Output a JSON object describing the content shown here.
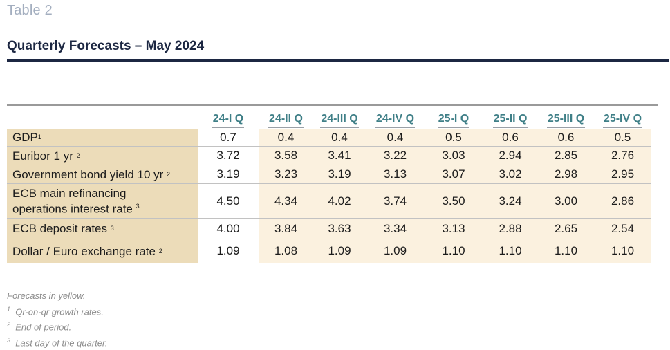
{
  "table_number": "Table 2",
  "title": "Quarterly Forecasts – May 2024",
  "columns": [
    "24-I Q",
    "24-II Q",
    "24-III Q",
    "24-IV Q",
    "25-I Q",
    "25-II Q",
    "25-III Q",
    "25-IV Q"
  ],
  "rows": [
    {
      "label": "GDP",
      "sup": "1",
      "values": [
        "0.7",
        "0.4",
        "0.4",
        "0.4",
        "0.5",
        "0.6",
        "0.6",
        "0.5"
      ]
    },
    {
      "label": "Euribor 1 yr",
      "sup": "2",
      "values": [
        "3.72",
        "3.58",
        "3.41",
        "3.22",
        "3.03",
        "2.94",
        "2.85",
        "2.76"
      ]
    },
    {
      "label": "Government bond yield 10 yr",
      "sup": "2",
      "values": [
        "3.19",
        "3.23",
        "3.19",
        "3.13",
        "3.07",
        "3.02",
        "2.98",
        "2.95"
      ]
    },
    {
      "label": "ECB main refinancing operations interest rate",
      "sup": "3",
      "values": [
        "4.50",
        "4.34",
        "4.02",
        "3.74",
        "3.50",
        "3.24",
        "3.00",
        "2.86"
      ]
    },
    {
      "label": "ECB deposit rates",
      "sup": "3",
      "values": [
        "4.00",
        "3.84",
        "3.63",
        "3.34",
        "3.13",
        "2.88",
        "2.65",
        "2.54"
      ]
    },
    {
      "label": "Dollar / Euro exchange rate",
      "sup": "2",
      "values": [
        "1.09",
        "1.08",
        "1.09",
        "1.09",
        "1.10",
        "1.10",
        "1.10",
        "1.10"
      ]
    }
  ],
  "footnotes": {
    "forecasts_note": "Forecasts in yellow.",
    "note1": {
      "mark": "1",
      "text": "Qr-on-qr growth rates."
    },
    "note2": {
      "mark": "2",
      "text": "End of period."
    },
    "note3": {
      "mark": "3",
      "text": "Last day of the quarter."
    }
  },
  "colors": {
    "label_bg": "#ecdcb9",
    "forecast_bg": "#fbf1df",
    "header_text": "#3f7f87",
    "title_text": "#1c2742"
  }
}
